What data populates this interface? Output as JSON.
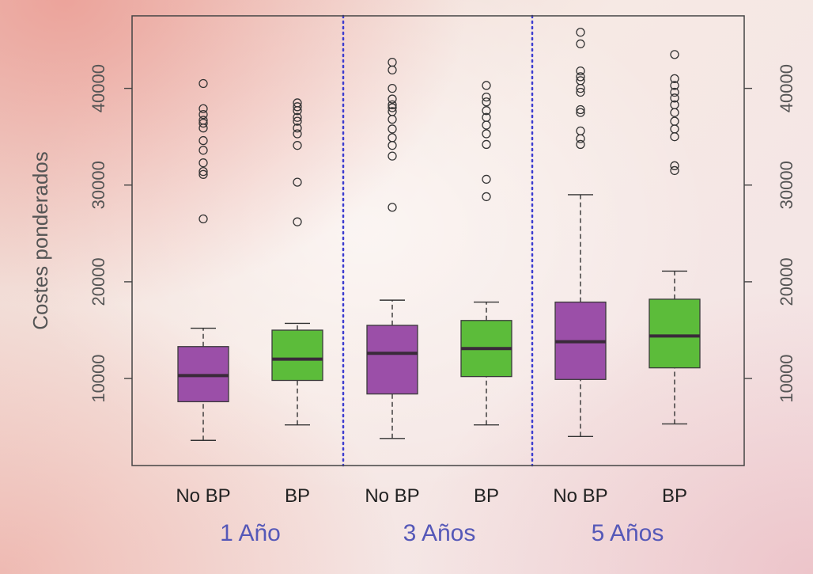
{
  "chart_data": {
    "type": "boxplot",
    "ylabel": "Costes ponderados",
    "ylim": [
      1000,
      47500
    ],
    "yticks": [
      10000,
      20000,
      30000,
      40000
    ],
    "ytick_labels": [
      "10000",
      "20000",
      "30000",
      "40000"
    ],
    "right_axis": true,
    "grid": false,
    "categories": [
      "No BP",
      "BP",
      "No BP",
      "BP",
      "No BP",
      "BP"
    ],
    "groups": [
      "1 Año",
      "3 Años",
      "5 Años"
    ],
    "colors": {
      "No BP": "#9b4fa8",
      "BP": "#5cbc3a",
      "divider": "#3c3cd0",
      "group_label": "#5558b8"
    },
    "boxes": [
      {
        "group": "1 Año",
        "label": "No BP",
        "whisker_low": 3600,
        "q1": 7600,
        "median": 10300,
        "q3": 13300,
        "whisker_high": 15200,
        "outliers": [
          26500,
          31100,
          31400,
          32300,
          33600,
          34600,
          35900,
          36400,
          36700,
          37300,
          37900,
          40500
        ]
      },
      {
        "group": "1 Año",
        "label": "BP",
        "whisker_low": 5200,
        "q1": 9800,
        "median": 12000,
        "q3": 15000,
        "whisker_high": 15700,
        "outliers": [
          26200,
          30300,
          34100,
          35300,
          35900,
          36600,
          37000,
          37700,
          38100,
          38500
        ]
      },
      {
        "group": "3 Años",
        "label": "No BP",
        "whisker_low": 3800,
        "q1": 8400,
        "median": 12600,
        "q3": 15500,
        "whisker_high": 18100,
        "outliers": [
          27700,
          33000,
          34100,
          34900,
          35800,
          36800,
          37600,
          38000,
          38300,
          38900,
          40000,
          41900,
          42700
        ]
      },
      {
        "group": "3 Años",
        "label": "BP",
        "whisker_low": 5200,
        "q1": 10200,
        "median": 13100,
        "q3": 16000,
        "whisker_high": 17900,
        "outliers": [
          28800,
          30600,
          34200,
          35300,
          36200,
          37000,
          37700,
          38600,
          39100,
          40300
        ]
      },
      {
        "group": "5 Años",
        "label": "No BP",
        "whisker_low": 4000,
        "q1": 9900,
        "median": 13800,
        "q3": 17900,
        "whisker_high": 29000,
        "outliers": [
          34200,
          34800,
          35600,
          37500,
          37800,
          39600,
          40000,
          40800,
          41200,
          41800,
          44600,
          45800
        ]
      },
      {
        "group": "5 Años",
        "label": "BP",
        "whisker_low": 5300,
        "q1": 11100,
        "median": 14400,
        "q3": 18200,
        "whisker_high": 21100,
        "outliers": [
          31500,
          32000,
          35000,
          35800,
          36600,
          37500,
          38300,
          39000,
          39600,
          40300,
          41000,
          43500
        ]
      }
    ]
  }
}
